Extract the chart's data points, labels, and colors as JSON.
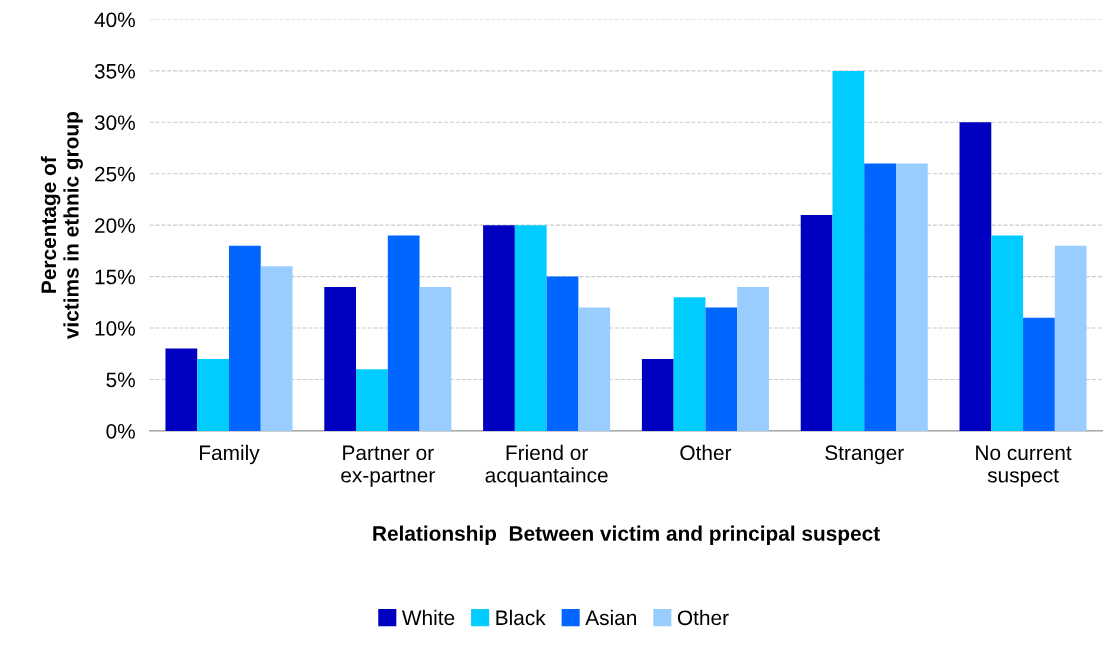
{
  "chart_data": {
    "type": "bar",
    "xlabel": "Relationship  Between victim and principal suspect",
    "ylabel": "Percentage of\nvictims in ethnic group",
    "categories": [
      "Family",
      "Partner or\nex-partner",
      "Friend or\nacquantaince",
      "Other",
      "Stranger",
      "No current\nsuspect"
    ],
    "series": [
      {
        "name": "White",
        "color": "#0000c0",
        "values": [
          8,
          14,
          20,
          7,
          21,
          30
        ]
      },
      {
        "name": "Black",
        "color": "#00ccff",
        "values": [
          7,
          6,
          20,
          13,
          35,
          19
        ]
      },
      {
        "name": "Asian",
        "color": "#0066ff",
        "values": [
          18,
          19,
          15,
          12,
          26,
          11
        ]
      },
      {
        "name": "Other",
        "color": "#99ccff",
        "values": [
          16,
          14,
          12,
          14,
          26,
          18
        ]
      }
    ],
    "ylim": [
      0,
      40
    ],
    "yticks": [
      {
        "value": 0,
        "label": "0%"
      },
      {
        "value": 5,
        "label": "5%"
      },
      {
        "value": 10,
        "label": "10%"
      },
      {
        "value": 15,
        "label": "15%"
      },
      {
        "value": 20,
        "label": "20%"
      },
      {
        "value": 25,
        "label": "25%"
      },
      {
        "value": 30,
        "label": "30%"
      },
      {
        "value": 35,
        "label": "35%"
      },
      {
        "value": 40,
        "label": "40%"
      }
    ],
    "grid": "y",
    "line_style": "dashed",
    "legend": "bottom"
  }
}
